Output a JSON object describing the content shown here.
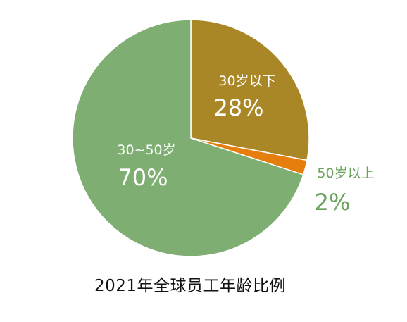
{
  "chart_data": {
    "type": "pie",
    "title": "2021年全球员工年龄比例",
    "slices": [
      {
        "label": "30岁以下",
        "value": 28,
        "display": "28%",
        "color": "#a98626",
        "label_color": "#ffffff"
      },
      {
        "label": "50岁以上",
        "value": 2,
        "display": "2%",
        "color": "#e67e0e",
        "label_color": "#6aa35b"
      },
      {
        "label": "30~50岁",
        "value": 70,
        "display": "70%",
        "color": "#7eae72",
        "label_color": "#ffffff"
      }
    ],
    "start_angle_deg": 0,
    "direction": "clockwise",
    "legend": "none",
    "data_labels": "category-and-percent"
  }
}
